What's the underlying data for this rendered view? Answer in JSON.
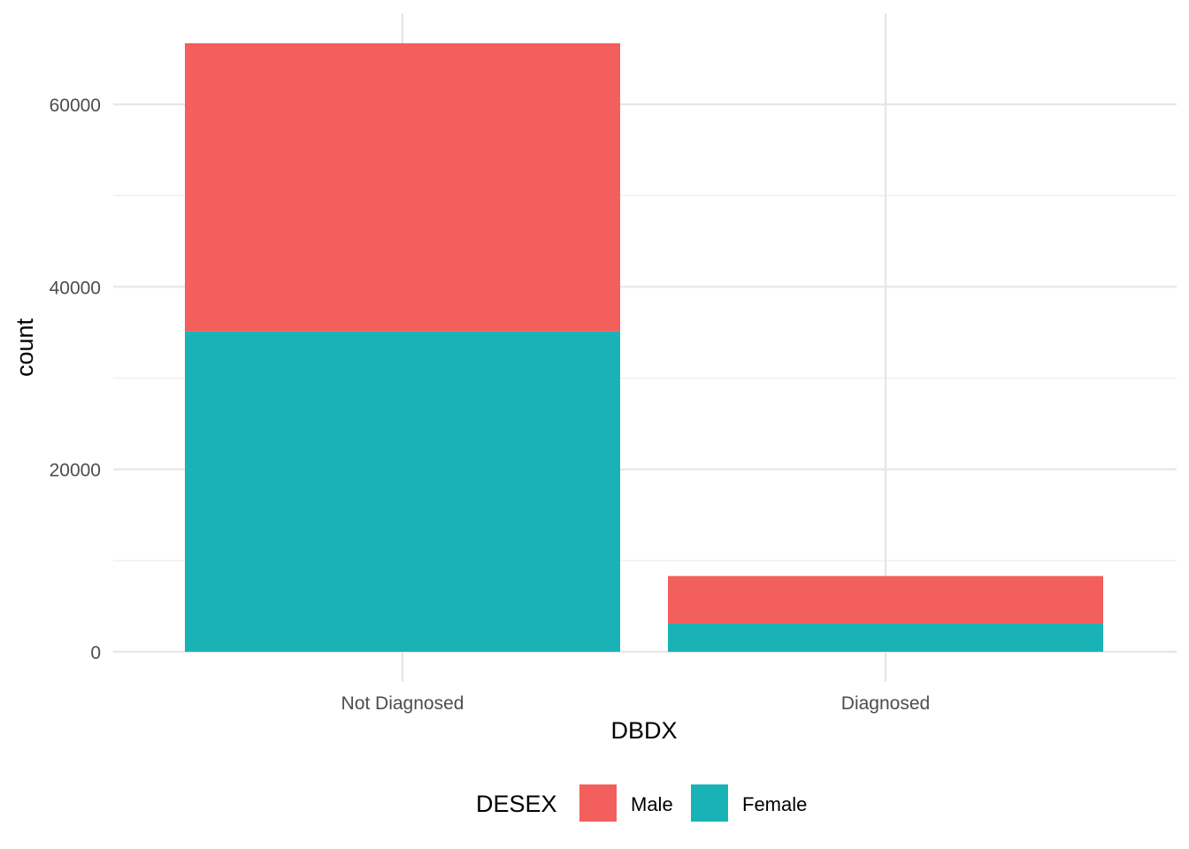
{
  "chart_data": {
    "type": "bar",
    "stacked": true,
    "categories": [
      "Not Diagnosed",
      "Diagnosed"
    ],
    "series": [
      {
        "name": "Female",
        "values": [
          35100,
          3100
        ],
        "color": "#19B3B6"
      },
      {
        "name": "Male",
        "values": [
          31600,
          5200
        ],
        "color": "#F25F5C"
      }
    ],
    "xlabel": "DBDX",
    "ylabel": "count",
    "ylim": [
      0,
      67000
    ],
    "yticks": [
      0,
      20000,
      40000,
      60000
    ],
    "ytick_labels": [
      "0",
      "20000",
      "40000",
      "60000"
    ],
    "grid": true,
    "legend": {
      "title": "DESEX",
      "position": "bottom",
      "entries": [
        {
          "label": "Male",
          "color": "#F25F5C"
        },
        {
          "label": "Female",
          "color": "#19B3B6"
        }
      ]
    },
    "colors": {
      "grid_major": "#e6e6e6",
      "grid_minor": "#f0f0f0",
      "background": "#ffffff"
    }
  }
}
